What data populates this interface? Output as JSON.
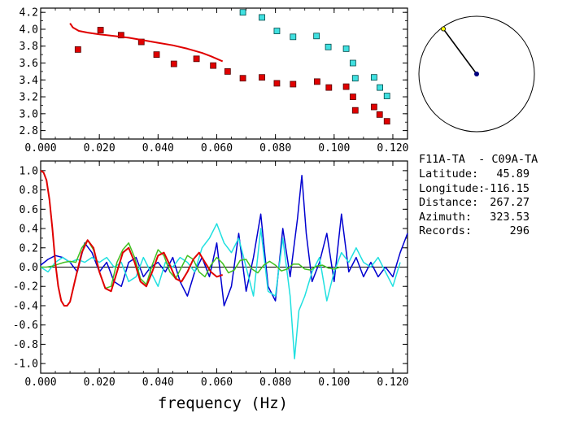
{
  "colors": {
    "red": "#e00000",
    "dark_red": "#500000",
    "cyan_fill": "#40e0e0",
    "dark_cyan": "#004848",
    "blue": "#0000d0",
    "cyan_line": "#20e0e0",
    "green": "#40c020",
    "axis": "#000000",
    "navy": "#000080",
    "yellow": "#ffff00"
  },
  "info": {
    "station_pair": "F11A-TA  - C09A-TA",
    "rows": [
      {
        "label": "Latitude:",
        "value": "45.89"
      },
      {
        "label": "Longitude:",
        "value": "-116.15"
      },
      {
        "label": "Distance:",
        "value": "267.27"
      },
      {
        "label": "Azimuth:",
        "value": "323.53"
      },
      {
        "label": "Records:",
        "value": "296"
      }
    ]
  },
  "compass": {
    "azimuth_deg": 323.53
  },
  "chart_data": [
    {
      "type": "scatter",
      "title": "",
      "xlim": [
        0.0,
        0.125
      ],
      "ylim": [
        2.7,
        4.25
      ],
      "x_ticks": [
        0.0,
        0.02,
        0.04,
        0.06,
        0.08,
        0.1,
        0.12
      ],
      "x_tick_labels": [
        "0.000",
        "0.020",
        "0.040",
        "0.060",
        "0.080",
        "0.100",
        "0.120"
      ],
      "y_ticks": [
        2.8,
        3.0,
        3.2,
        3.4,
        3.6,
        3.8,
        4.0,
        4.2
      ],
      "y_tick_labels": [
        "2.8",
        "3.0",
        "3.2",
        "3.4",
        "3.6",
        "3.8",
        "4.0",
        "4.2"
      ],
      "series": [
        {
          "name": "red squares",
          "color": "red",
          "x": [
            0.0127,
            0.0204,
            0.0274,
            0.0343,
            0.0395,
            0.0454,
            0.0531,
            0.0588,
            0.0637,
            0.0689,
            0.0754,
            0.0805,
            0.086,
            0.0942,
            0.0982,
            0.1041,
            0.1064,
            0.1072,
            0.1136,
            0.1155,
            0.118
          ],
          "y": [
            3.76,
            3.99,
            3.93,
            3.85,
            3.7,
            3.59,
            3.65,
            3.57,
            3.5,
            3.42,
            3.43,
            3.36,
            3.35,
            3.38,
            3.31,
            3.32,
            3.2,
            3.04,
            3.08,
            2.99,
            2.91
          ]
        },
        {
          "name": "cyan squares",
          "color": "cyan_fill",
          "x": [
            0.0689,
            0.0754,
            0.0805,
            0.086,
            0.094,
            0.098,
            0.1041,
            0.1064,
            0.1072,
            0.1136,
            0.1156,
            0.118
          ],
          "y": [
            4.2,
            4.14,
            3.98,
            3.91,
            3.92,
            3.79,
            3.77,
            3.6,
            3.42,
            3.43,
            3.31,
            3.21
          ]
        },
        {
          "name": "red curve",
          "color": "red",
          "type": "line",
          "x": [
            0.01,
            0.011,
            0.013,
            0.016,
            0.02,
            0.025,
            0.03,
            0.035,
            0.04,
            0.045,
            0.05,
            0.055,
            0.058,
            0.06,
            0.062
          ],
          "y": [
            4.07,
            4.02,
            3.98,
            3.96,
            3.94,
            3.92,
            3.9,
            3.87,
            3.84,
            3.81,
            3.77,
            3.72,
            3.68,
            3.65,
            3.62
          ]
        }
      ]
    },
    {
      "type": "line",
      "xlabel": "frequency (Hz)",
      "ylabel": "",
      "xlim": [
        0.0,
        0.125
      ],
      "ylim": [
        -1.1,
        1.1
      ],
      "x_ticks": [
        0.0,
        0.02,
        0.04,
        0.06,
        0.08,
        0.1,
        0.12
      ],
      "x_tick_labels": [
        "0.000",
        "0.020",
        "0.040",
        "0.060",
        "0.080",
        "0.100",
        "0.120"
      ],
      "y_ticks": [
        1.0,
        0.8,
        0.6,
        0.4,
        0.2,
        0.0,
        -0.2,
        -0.4,
        -0.6,
        -0.8,
        -1.0
      ],
      "y_tick_labels": [
        "1.0",
        "0.8",
        "0.6",
        "0.4",
        "0.2",
        "0.0",
        "-0.2",
        "-0.4",
        "-0.6",
        "-0.8",
        "-1.0"
      ],
      "zero_line": true,
      "series": [
        {
          "name": "blue",
          "color": "blue",
          "x": [
            0.0,
            0.0025,
            0.005,
            0.0075,
            0.01,
            0.0125,
            0.015,
            0.0175,
            0.02,
            0.0225,
            0.025,
            0.0275,
            0.03,
            0.0325,
            0.035,
            0.0375,
            0.04,
            0.0425,
            0.045,
            0.0475,
            0.05,
            0.0525,
            0.055,
            0.0575,
            0.06,
            0.0625,
            0.065,
            0.0675,
            0.07,
            0.0725,
            0.075,
            0.0775,
            0.08,
            0.0825,
            0.085,
            0.0875,
            0.089,
            0.0905,
            0.0925,
            0.095,
            0.0975,
            0.1,
            0.1025,
            0.105,
            0.1075,
            0.11,
            0.1125,
            0.115,
            0.1175,
            0.12,
            0.1225,
            0.125
          ],
          "y": [
            0.02,
            0.08,
            0.12,
            0.1,
            0.05,
            -0.05,
            0.25,
            0.15,
            -0.05,
            0.05,
            -0.15,
            -0.2,
            0.05,
            0.1,
            -0.1,
            0.0,
            0.05,
            -0.05,
            0.1,
            -0.15,
            -0.3,
            -0.05,
            0.1,
            -0.1,
            0.25,
            -0.4,
            -0.2,
            0.35,
            -0.25,
            0.1,
            0.55,
            -0.2,
            -0.35,
            0.4,
            -0.1,
            0.5,
            0.95,
            0.35,
            -0.15,
            0.05,
            0.35,
            -0.15,
            0.55,
            -0.05,
            0.1,
            -0.1,
            0.05,
            -0.1,
            0.0,
            -0.1,
            0.15,
            0.35
          ]
        },
        {
          "name": "cyan",
          "color": "cyan_line",
          "x": [
            0.0,
            0.0025,
            0.005,
            0.0075,
            0.01,
            0.0125,
            0.015,
            0.0175,
            0.02,
            0.0225,
            0.025,
            0.0275,
            0.03,
            0.0325,
            0.035,
            0.0375,
            0.04,
            0.0425,
            0.045,
            0.0475,
            0.05,
            0.0525,
            0.055,
            0.0575,
            0.06,
            0.0625,
            0.065,
            0.0675,
            0.07,
            0.0725,
            0.075,
            0.0775,
            0.08,
            0.0825,
            0.085,
            0.0865,
            0.088,
            0.09,
            0.0925,
            0.095,
            0.0975,
            0.1,
            0.1025,
            0.105,
            0.1075,
            0.11,
            0.1125,
            0.115,
            0.1175,
            0.12,
            0.1225
          ],
          "y": [
            0.0,
            -0.05,
            0.05,
            0.1,
            0.05,
            0.08,
            0.05,
            0.1,
            0.05,
            0.1,
            0.0,
            0.05,
            -0.15,
            -0.1,
            0.1,
            -0.05,
            -0.2,
            0.05,
            0.0,
            0.1,
            0.05,
            -0.05,
            0.2,
            0.3,
            0.45,
            0.25,
            0.15,
            0.3,
            0.0,
            -0.3,
            0.4,
            -0.25,
            -0.3,
            0.3,
            -0.3,
            -0.95,
            -0.45,
            -0.3,
            -0.05,
            0.1,
            -0.35,
            -0.05,
            0.15,
            0.05,
            0.2,
            0.05,
            0.0,
            0.1,
            -0.05,
            -0.2,
            0.05
          ]
        },
        {
          "name": "green",
          "color": "green",
          "x": [
            0.0,
            0.002,
            0.004,
            0.006,
            0.008,
            0.01,
            0.012,
            0.014,
            0.016,
            0.018,
            0.02,
            0.022,
            0.024,
            0.026,
            0.028,
            0.03,
            0.032,
            0.034,
            0.036,
            0.038,
            0.04,
            0.042,
            0.044,
            0.046,
            0.048,
            0.05,
            0.052,
            0.054,
            0.056,
            0.058,
            0.06,
            0.062,
            0.064,
            0.066,
            0.068,
            0.07,
            0.072,
            0.074,
            0.076,
            0.078,
            0.08,
            0.082,
            0.084,
            0.086,
            0.088,
            0.09,
            0.092,
            0.094,
            0.096,
            0.098,
            0.1,
            0.102
          ],
          "y": [
            0.0,
            0.0,
            0.01,
            0.03,
            0.05,
            0.06,
            0.05,
            0.2,
            0.28,
            0.18,
            -0.05,
            -0.22,
            -0.2,
            0.05,
            0.18,
            0.25,
            0.1,
            -0.12,
            -0.18,
            0.02,
            0.18,
            0.12,
            -0.05,
            -0.12,
            0.0,
            0.12,
            0.08,
            -0.05,
            -0.1,
            0.02,
            0.1,
            0.04,
            -0.06,
            -0.03,
            0.07,
            0.08,
            -0.02,
            -0.06,
            0.02,
            0.06,
            0.02,
            -0.04,
            -0.02,
            0.03,
            0.03,
            -0.02,
            -0.03,
            0.01,
            0.02,
            -0.01,
            -0.02,
            0.0
          ]
        },
        {
          "name": "red",
          "color": "red",
          "x": [
            0.0,
            0.001,
            0.002,
            0.003,
            0.004,
            0.005,
            0.006,
            0.007,
            0.008,
            0.009,
            0.01,
            0.012,
            0.014,
            0.016,
            0.018,
            0.02,
            0.022,
            0.024,
            0.026,
            0.028,
            0.03,
            0.032,
            0.034,
            0.036,
            0.038,
            0.04,
            0.042,
            0.044,
            0.046,
            0.048,
            0.05,
            0.052,
            0.054,
            0.056,
            0.058,
            0.06,
            0.062
          ],
          "y": [
            1.0,
            0.98,
            0.9,
            0.7,
            0.4,
            0.05,
            -0.2,
            -0.35,
            -0.4,
            -0.4,
            -0.36,
            -0.1,
            0.15,
            0.28,
            0.2,
            -0.05,
            -0.22,
            -0.25,
            -0.05,
            0.15,
            0.2,
            0.05,
            -0.15,
            -0.2,
            -0.05,
            0.12,
            0.15,
            0.02,
            -0.12,
            -0.15,
            -0.05,
            0.08,
            0.15,
            0.05,
            -0.05,
            -0.1,
            -0.08
          ]
        }
      ]
    }
  ]
}
